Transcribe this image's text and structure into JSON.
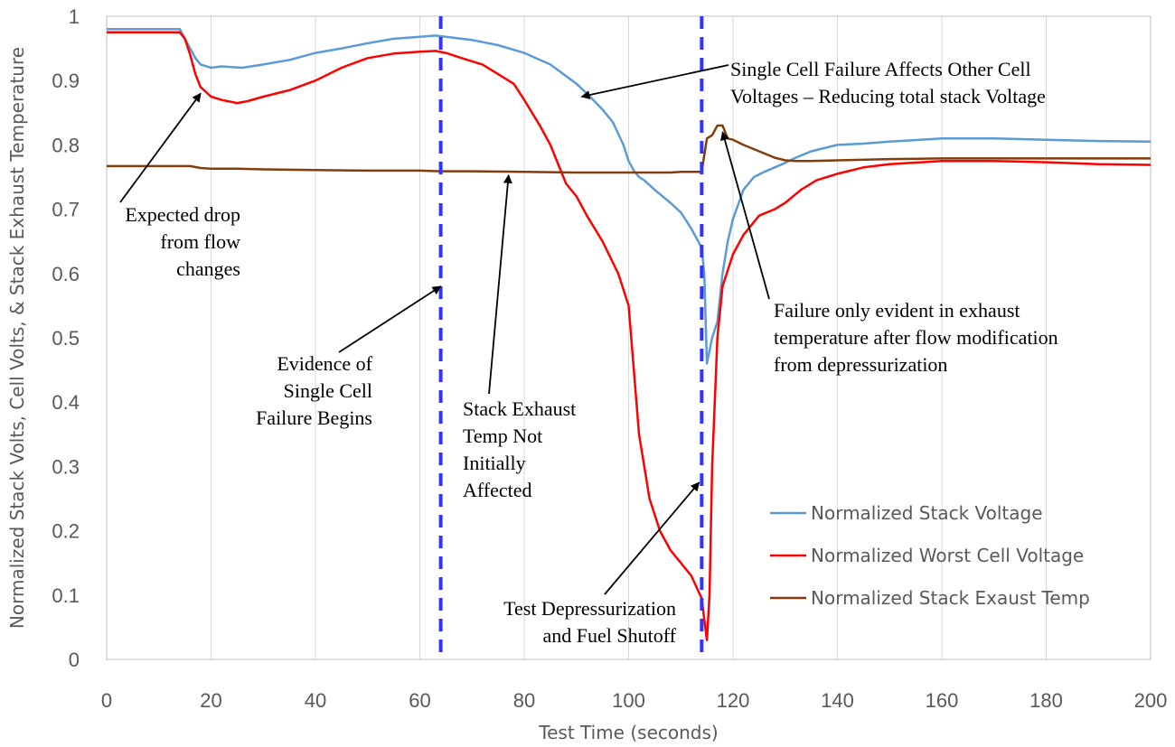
{
  "chart_data": {
    "type": "line",
    "title": "",
    "xlabel": "Test Time (seconds)",
    "ylabel": "Normalized Stack Volts, Cell Volts, & Stack Exhaust Temperature",
    "xlim": [
      0,
      200
    ],
    "ylim": [
      0,
      1
    ],
    "xticks": [
      "0",
      "20",
      "40",
      "60",
      "80",
      "100",
      "120",
      "140",
      "160",
      "180",
      "200"
    ],
    "yticks": [
      "0",
      "0.1",
      "0.2",
      "0.3",
      "0.4",
      "0.5",
      "0.6",
      "0.7",
      "0.8",
      "0.9",
      "1"
    ],
    "grid": "vertical",
    "legend_position": "lower-right",
    "series": [
      {
        "name": "Normalized Stack Voltage",
        "color": "#5b9bd5",
        "x": [
          0,
          5,
          10,
          14,
          15,
          16,
          17,
          18,
          20,
          22,
          26,
          30,
          35,
          40,
          45,
          50,
          55,
          60,
          63,
          65,
          70,
          75,
          80,
          85,
          90,
          92,
          95,
          97,
          99,
          100,
          101,
          102,
          103,
          105,
          108,
          110,
          112,
          113,
          114,
          114.5,
          115,
          116,
          117,
          118,
          119,
          120,
          122,
          124,
          126,
          128,
          130,
          132,
          135,
          140,
          145,
          150,
          160,
          170,
          180,
          190,
          200
        ],
        "y": [
          0.98,
          0.98,
          0.98,
          0.98,
          0.965,
          0.95,
          0.935,
          0.925,
          0.92,
          0.922,
          0.92,
          0.925,
          0.932,
          0.943,
          0.95,
          0.958,
          0.965,
          0.968,
          0.97,
          0.968,
          0.963,
          0.955,
          0.943,
          0.925,
          0.895,
          0.88,
          0.855,
          0.835,
          0.8,
          0.775,
          0.76,
          0.75,
          0.745,
          0.73,
          0.71,
          0.695,
          0.67,
          0.655,
          0.64,
          0.6,
          0.46,
          0.5,
          0.525,
          0.6,
          0.65,
          0.685,
          0.73,
          0.75,
          0.758,
          0.765,
          0.772,
          0.78,
          0.79,
          0.8,
          0.802,
          0.805,
          0.81,
          0.81,
          0.808,
          0.806,
          0.805
        ]
      },
      {
        "name": "Normalized Worst Cell Voltage",
        "color": "#ff0000",
        "x": [
          0,
          5,
          10,
          14,
          15,
          16,
          17,
          18,
          20,
          22,
          25,
          27,
          30,
          35,
          40,
          45,
          50,
          55,
          60,
          63,
          65,
          68,
          72,
          75,
          78,
          80,
          83,
          85,
          88,
          90,
          92,
          95,
          98,
          100,
          102,
          104,
          106,
          108,
          110,
          112,
          114,
          115,
          115.5,
          116,
          117,
          118,
          120,
          122,
          125,
          128,
          130,
          133,
          136,
          140,
          145,
          150,
          160,
          170,
          180,
          190,
          200
        ],
        "y": [
          0.975,
          0.975,
          0.975,
          0.975,
          0.965,
          0.94,
          0.91,
          0.89,
          0.875,
          0.87,
          0.865,
          0.868,
          0.875,
          0.885,
          0.9,
          0.92,
          0.935,
          0.942,
          0.945,
          0.946,
          0.943,
          0.935,
          0.925,
          0.91,
          0.895,
          0.87,
          0.83,
          0.8,
          0.74,
          0.72,
          0.69,
          0.65,
          0.6,
          0.55,
          0.35,
          0.25,
          0.2,
          0.17,
          0.15,
          0.13,
          0.095,
          0.03,
          0.1,
          0.3,
          0.5,
          0.58,
          0.63,
          0.66,
          0.69,
          0.7,
          0.71,
          0.73,
          0.745,
          0.755,
          0.765,
          0.77,
          0.775,
          0.775,
          0.773,
          0.77,
          0.769
        ]
      },
      {
        "name": "Normalized Stack Exaust Temp",
        "color": "#843c0c",
        "x": [
          0,
          10,
          16,
          18,
          20,
          25,
          30,
          40,
          50,
          60,
          64,
          70,
          80,
          90,
          100,
          108,
          110,
          114,
          115,
          116,
          117,
          118,
          119,
          120,
          122,
          125,
          128,
          130,
          132,
          135,
          140,
          150,
          160,
          170,
          180,
          190,
          200
        ],
        "y": [
          0.767,
          0.767,
          0.767,
          0.764,
          0.763,
          0.763,
          0.762,
          0.761,
          0.76,
          0.76,
          0.759,
          0.759,
          0.758,
          0.757,
          0.757,
          0.757,
          0.758,
          0.758,
          0.81,
          0.815,
          0.83,
          0.83,
          0.81,
          0.808,
          0.8,
          0.79,
          0.78,
          0.776,
          0.775,
          0.775,
          0.776,
          0.778,
          0.779,
          0.779,
          0.779,
          0.779,
          0.779
        ]
      }
    ],
    "vertical_markers": [
      {
        "x": 64,
        "color": "#3333ff",
        "style": "dashed"
      },
      {
        "x": 114,
        "color": "#3333ff",
        "style": "dashed"
      }
    ],
    "annotations": [
      {
        "lines": [
          "Expected drop",
          "from flow",
          "changes"
        ],
        "points_to": [
          18,
          0.88
        ]
      },
      {
        "lines": [
          "Evidence of",
          "Single Cell",
          "Failure Begins"
        ],
        "points_to": [
          64,
          0.58
        ]
      },
      {
        "lines": [
          "Stack Exhaust",
          "Temp Not",
          "Initially",
          "Affected"
        ],
        "points_to": [
          77,
          0.753
        ]
      },
      {
        "lines": [
          "Single Cell Failure Affects Other Cell",
          "Voltages – Reducing total stack Voltage"
        ],
        "points_to": [
          91,
          0.875
        ]
      },
      {
        "lines": [
          "Failure only evident in exhaust",
          "temperature after flow modification",
          "from depressurization"
        ],
        "points_to": [
          118,
          0.82
        ]
      },
      {
        "lines": [
          "Test Depressurization",
          "and Fuel Shutoff"
        ],
        "points_to": [
          113.5,
          0.275
        ]
      }
    ]
  }
}
